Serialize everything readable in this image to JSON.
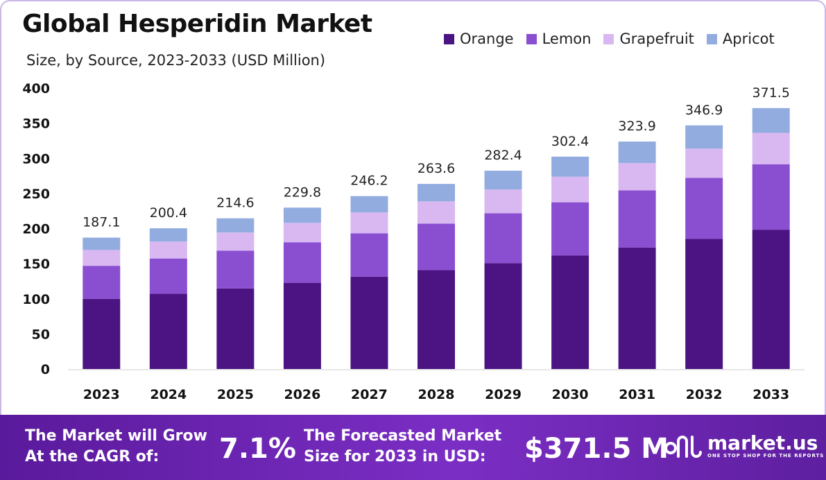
{
  "title": "Global Hesperidin Market",
  "subtitle": "Size, by Source, 2023-2033 (USD Million)",
  "colors": {
    "orange": "#4b1482",
    "lemon": "#8a4fd1",
    "grapefruit": "#d9b8f2",
    "apricot": "#93acdf"
  },
  "chart_data": {
    "type": "bar",
    "stacked": true,
    "categories": [
      "2023",
      "2024",
      "2025",
      "2026",
      "2027",
      "2028",
      "2029",
      "2030",
      "2031",
      "2032",
      "2033"
    ],
    "series": [
      {
        "name": "Orange",
        "color": "#4b1482",
        "values": [
          100.0,
          107.1,
          114.7,
          122.8,
          131.5,
          140.8,
          150.8,
          161.5,
          173.0,
          185.2,
          198.4
        ]
      },
      {
        "name": "Lemon",
        "color": "#8a4fd1",
        "values": [
          47.0,
          50.3,
          53.9,
          57.7,
          61.8,
          66.2,
          70.9,
          75.9,
          81.3,
          87.0,
          93.2
        ]
      },
      {
        "name": "Grapefruit",
        "color": "#d9b8f2",
        "values": [
          22.5,
          24.1,
          25.8,
          27.6,
          29.6,
          31.7,
          33.9,
          36.4,
          38.9,
          41.7,
          44.7
        ]
      },
      {
        "name": "Apricot",
        "color": "#93acdf",
        "values": [
          17.6,
          18.9,
          20.2,
          21.7,
          23.3,
          24.9,
          26.8,
          28.6,
          30.7,
          33.0,
          35.2
        ]
      }
    ],
    "totals": [
      "187.1",
      "200.4",
      "214.6",
      "229.8",
      "246.2",
      "263.6",
      "282.4",
      "302.4",
      "323.9",
      "346.9",
      "371.5"
    ],
    "yticks": [
      "0",
      "50",
      "100",
      "150",
      "200",
      "250",
      "300",
      "350",
      "400"
    ],
    "ylim": [
      0,
      400
    ],
    "xlabel": "",
    "ylabel": "",
    "legend_position": "top-right",
    "grid": false
  },
  "footer": {
    "cagr_label_line1": "The Market will Grow",
    "cagr_label_line2": "At the CAGR of:",
    "cagr_value": "7.1%",
    "forecast_label_line1": "The Forecasted Market",
    "forecast_label_line2": "Size for 2033 in USD:",
    "forecast_value": "$371.5 M"
  },
  "logo": {
    "name": "market.us",
    "tagline": "ONE STOP SHOP FOR THE REPORTS"
  }
}
